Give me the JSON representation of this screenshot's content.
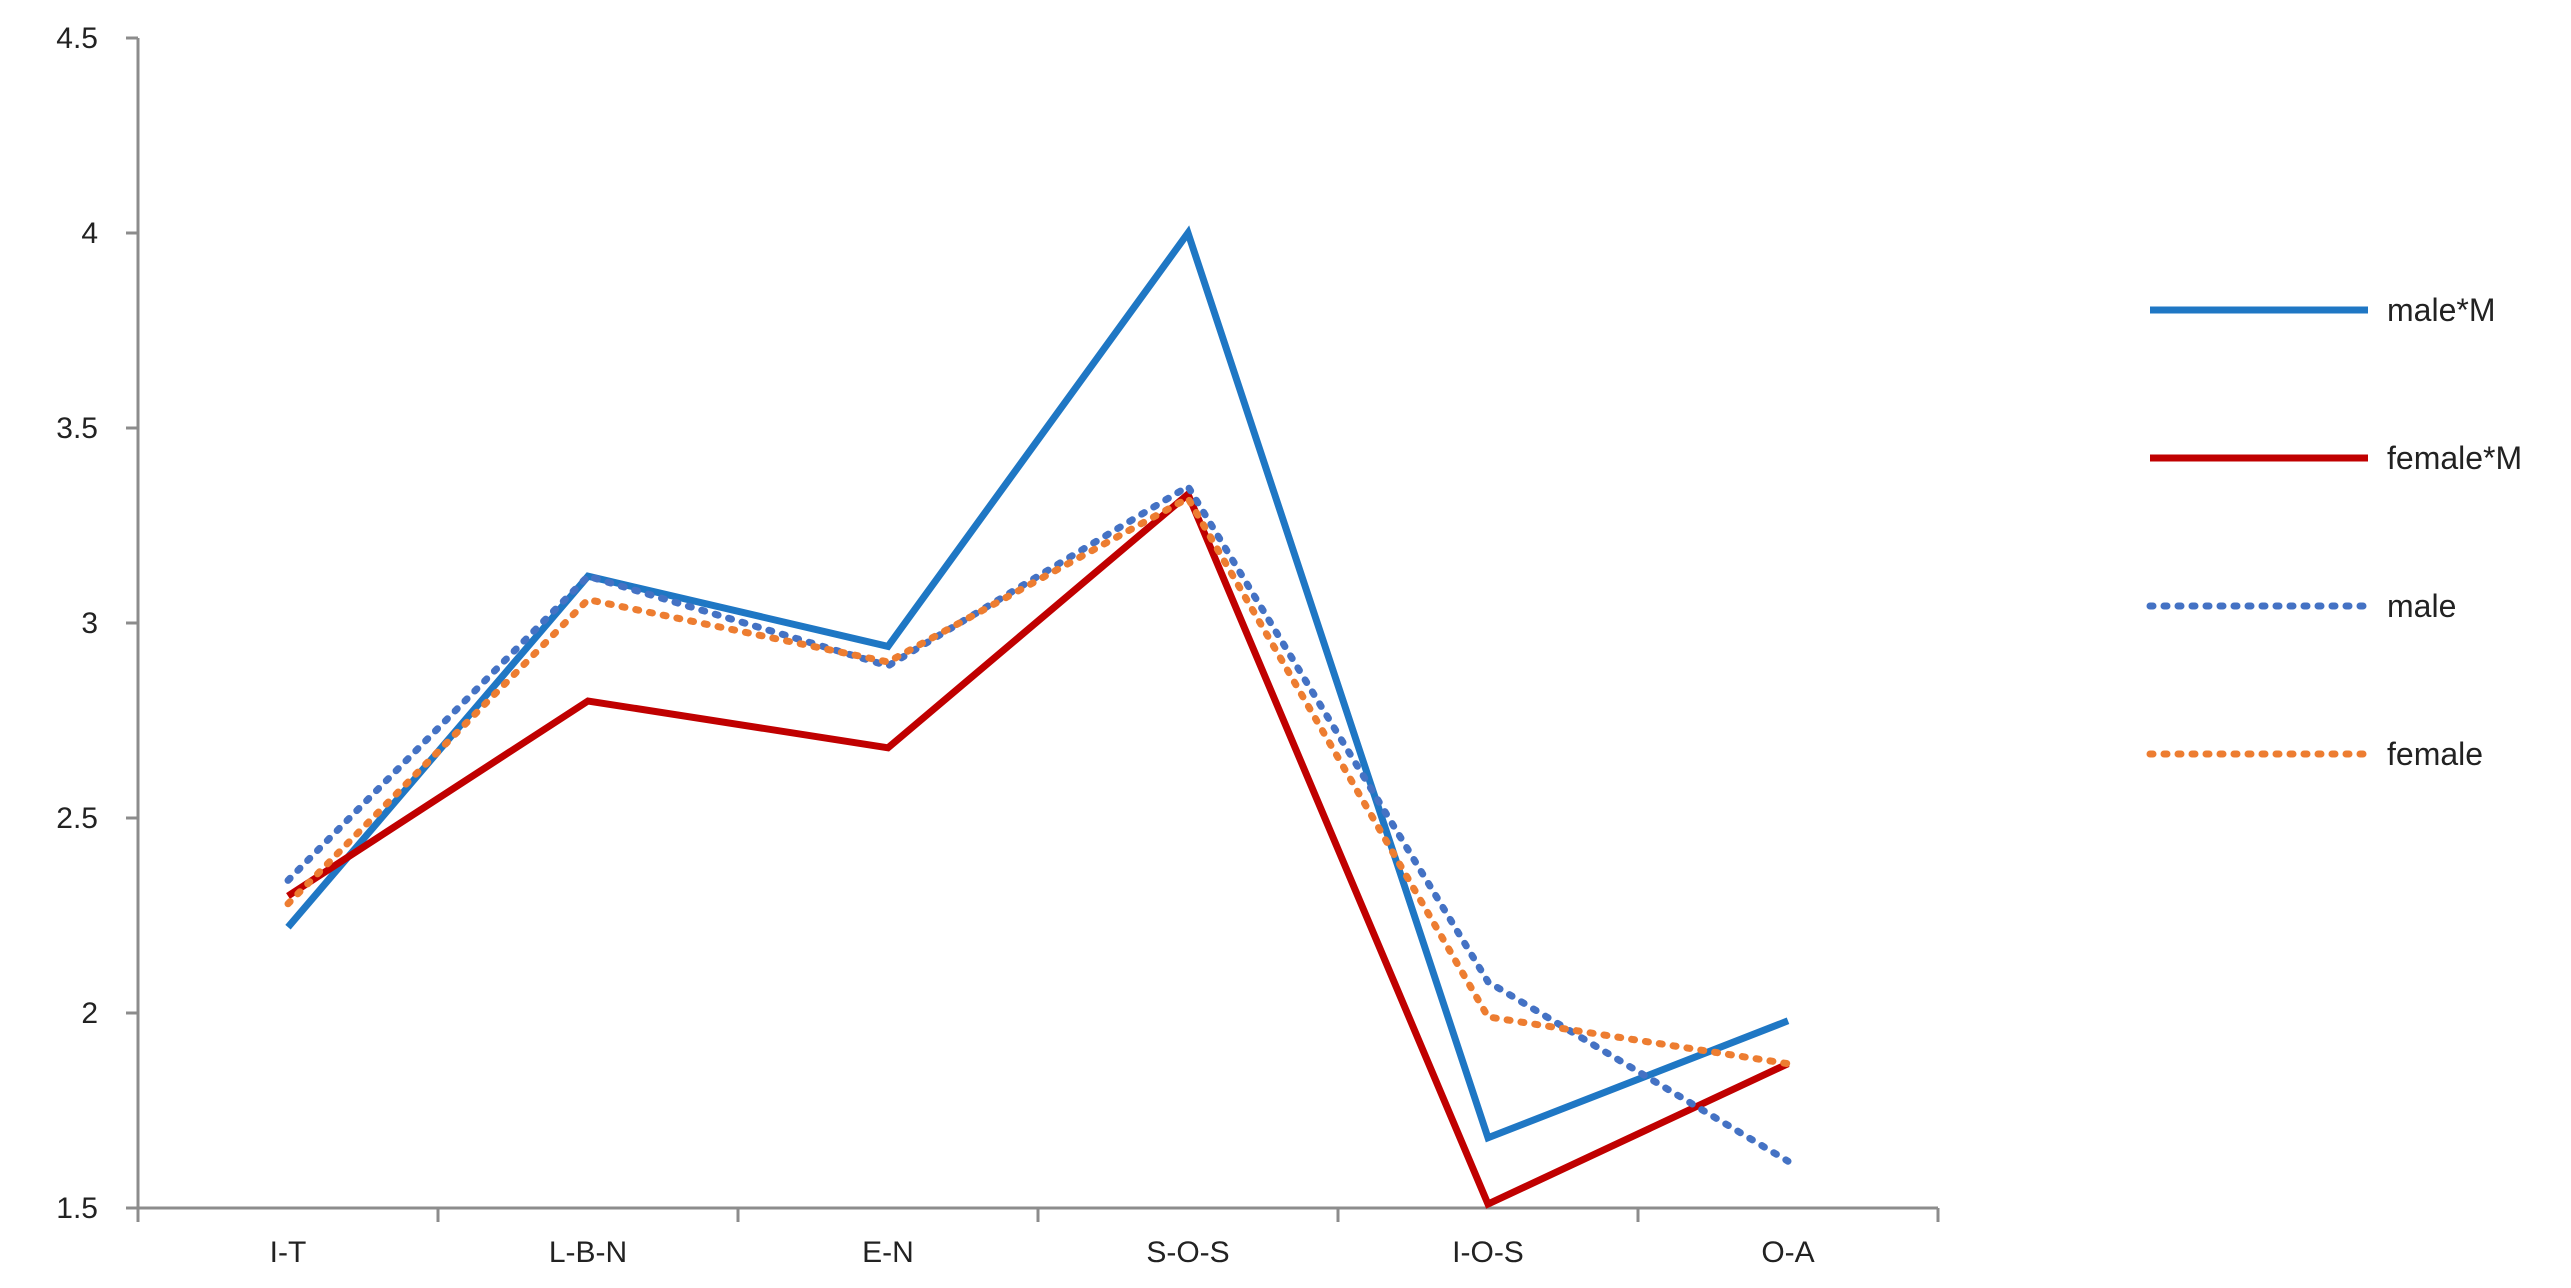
{
  "chart_data": {
    "type": "line",
    "title": "",
    "xlabel": "",
    "ylabel": "",
    "categories": [
      "I-T",
      "L-B-N",
      "E-N",
      "S-O-S",
      "I-O-S",
      "O-A"
    ],
    "ylim": [
      1.5,
      4.5
    ],
    "yticks": [
      "1.5",
      "2",
      "2.5",
      "3",
      "3.5",
      "4",
      "4.5"
    ],
    "grid": false,
    "legend": "right",
    "series": [
      {
        "name": "male*M",
        "values": [
          2.22,
          3.12,
          2.94,
          4.0,
          1.68,
          1.98
        ],
        "color": "#1f77c4",
        "style": "solid"
      },
      {
        "name": "female*M",
        "values": [
          2.3,
          2.8,
          2.68,
          3.33,
          1.51,
          1.87
        ],
        "color": "#c00000",
        "style": "solid"
      },
      {
        "name": "male",
        "values": [
          2.34,
          3.12,
          2.89,
          3.35,
          2.08,
          1.62
        ],
        "color": "#4472c4",
        "style": "dotted"
      },
      {
        "name": "female",
        "values": [
          2.28,
          3.06,
          2.9,
          3.32,
          1.99,
          1.87
        ],
        "color": "#ed7d31",
        "style": "dotted"
      }
    ]
  }
}
